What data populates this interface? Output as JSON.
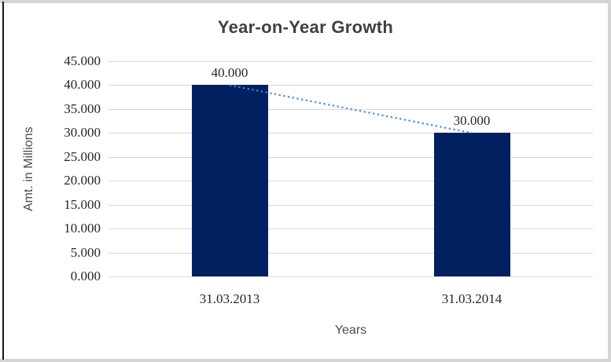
{
  "chart_data": {
    "type": "bar",
    "title": "Year-on-Year Growth",
    "xlabel": "Years",
    "ylabel": "Amt. in Millions",
    "categories": [
      "31.03.2013",
      "31.03.2014"
    ],
    "values": [
      40,
      30
    ],
    "data_labels": [
      "40.000",
      "30.000"
    ],
    "ylim": [
      0,
      45
    ],
    "ytick_step": 5,
    "ytick_labels": [
      "0.000",
      "5.000",
      "10.000",
      "15.000",
      "20.000",
      "25.000",
      "30.000",
      "35.000",
      "40.000",
      "45.000"
    ],
    "grid": true,
    "legend": "none",
    "trendline": {
      "style": "dotted",
      "connects": "bar-tops",
      "points": [
        40,
        30
      ]
    },
    "colors": {
      "bar": "#002060",
      "trendline": "#4f87c7",
      "gridline": "#d9d9d9",
      "title_text": "#404040",
      "axis_title_text": "#4d4d4d",
      "tick_text": "#262626",
      "frame": "#d4d4d4",
      "left_border": "#161616",
      "background": "#ffffff"
    }
  }
}
